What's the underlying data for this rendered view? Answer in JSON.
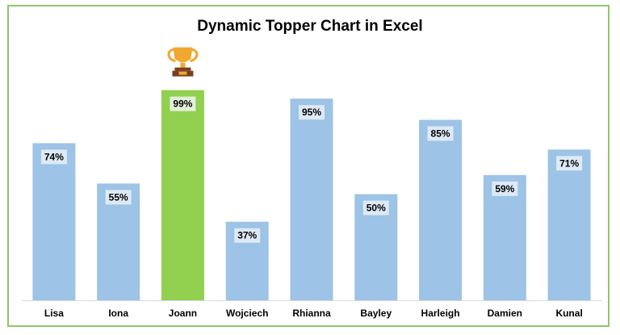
{
  "chart_data": {
    "type": "bar",
    "title": "Dynamic Topper Chart in Excel",
    "categories": [
      "Lisa",
      "Iona",
      "Joann",
      "Wojciech",
      "Rhianna",
      "Bayley",
      "Harleigh",
      "Damien",
      "Kunal"
    ],
    "values": [
      74,
      55,
      99,
      37,
      95,
      50,
      85,
      59,
      71
    ],
    "data_labels": [
      "74%",
      "55%",
      "99%",
      "37%",
      "95%",
      "50%",
      "85%",
      "59%",
      "71%"
    ],
    "ylim": [
      0,
      100
    ],
    "grid": false,
    "legend": "none",
    "colors": {
      "bar": "#9dc3e6",
      "topper_bar": "#92d050",
      "label_box": "#dde9f5",
      "topper_label_box": "#e2efd9",
      "frame": "#8fc66a",
      "trophy_gold": "#f0a830",
      "trophy_base": "#7b3f1d"
    },
    "topper_icon": "trophy-icon"
  }
}
